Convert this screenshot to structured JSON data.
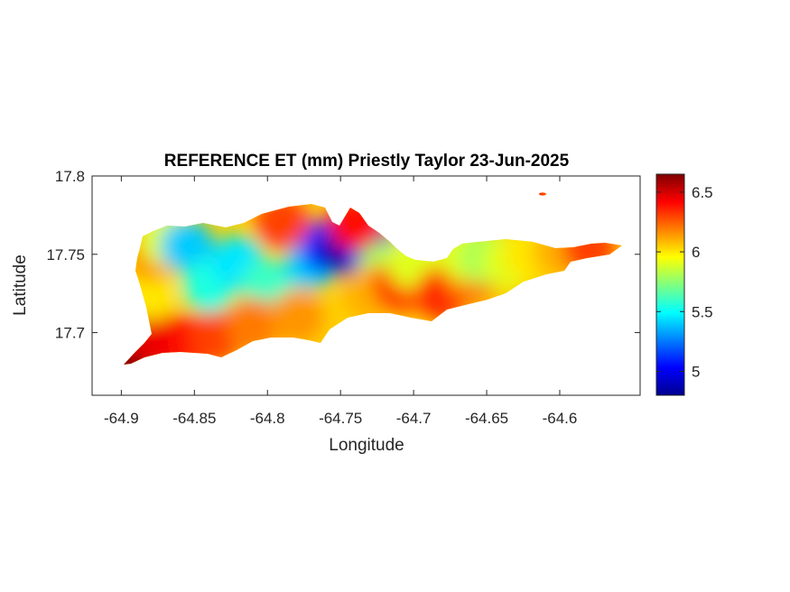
{
  "chart_data": {
    "type": "heatmap",
    "title": "REFERENCE ET (mm) Priestly Taylor 23-Jun-2025",
    "xlabel": "Longitude",
    "ylabel": "Latitude",
    "xlim": [
      -64.92,
      -64.545
    ],
    "ylim": [
      17.66,
      17.8
    ],
    "xticks": [
      -64.9,
      -64.85,
      -64.8,
      -64.75,
      -64.7,
      -64.65,
      -64.6
    ],
    "xtick_labels": [
      "-64.9",
      "-64.85",
      "-64.8",
      "-64.75",
      "-64.7",
      "-64.65",
      "-64.6"
    ],
    "yticks": [
      17.7,
      17.75,
      17.8
    ],
    "ytick_labels": [
      "17.7",
      "17.75",
      "17.8"
    ],
    "colorbar": {
      "colormap": "jet",
      "range": [
        4.8,
        6.65
      ],
      "ticks": [
        5,
        5.5,
        6,
        6.5
      ],
      "tick_labels": [
        "5",
        "5.5",
        "6",
        "6.5"
      ]
    },
    "grid": false,
    "value_field": [
      {
        "lon": -64.895,
        "lat": 17.685,
        "value": 6.65
      },
      {
        "lon": -64.885,
        "lat": 17.7,
        "value": 6.5
      },
      {
        "lon": -64.87,
        "lat": 17.695,
        "value": 6.45
      },
      {
        "lon": -64.85,
        "lat": 17.695,
        "value": 6.4
      },
      {
        "lon": -64.835,
        "lat": 17.698,
        "value": 6.3
      },
      {
        "lon": -64.88,
        "lat": 17.725,
        "value": 6.0
      },
      {
        "lon": -64.88,
        "lat": 17.75,
        "value": 6.15
      },
      {
        "lon": -64.87,
        "lat": 17.76,
        "value": 5.9
      },
      {
        "lon": -64.855,
        "lat": 17.755,
        "value": 5.4
      },
      {
        "lon": -64.84,
        "lat": 17.73,
        "value": 5.55
      },
      {
        "lon": -64.82,
        "lat": 17.745,
        "value": 5.45
      },
      {
        "lon": -64.8,
        "lat": 17.73,
        "value": 5.6
      },
      {
        "lon": -64.81,
        "lat": 17.705,
        "value": 6.2
      },
      {
        "lon": -64.78,
        "lat": 17.71,
        "value": 6.15
      },
      {
        "lon": -64.77,
        "lat": 17.745,
        "value": 5.4
      },
      {
        "lon": -64.76,
        "lat": 17.755,
        "value": 5.1
      },
      {
        "lon": -64.745,
        "lat": 17.753,
        "value": 4.85
      },
      {
        "lon": -64.73,
        "lat": 17.752,
        "value": 5.0
      },
      {
        "lon": -64.79,
        "lat": 17.77,
        "value": 6.3
      },
      {
        "lon": -64.74,
        "lat": 17.77,
        "value": 6.4
      },
      {
        "lon": -64.72,
        "lat": 17.74,
        "value": 5.8
      },
      {
        "lon": -64.73,
        "lat": 17.725,
        "value": 6.1
      },
      {
        "lon": -64.71,
        "lat": 17.73,
        "value": 6.3
      },
      {
        "lon": -64.7,
        "lat": 17.745,
        "value": 5.9
      },
      {
        "lon": -64.68,
        "lat": 17.725,
        "value": 6.35
      },
      {
        "lon": -64.66,
        "lat": 17.735,
        "value": 6.2
      },
      {
        "lon": -64.665,
        "lat": 17.75,
        "value": 5.9
      },
      {
        "lon": -64.65,
        "lat": 17.748,
        "value": 5.8
      },
      {
        "lon": -64.635,
        "lat": 17.745,
        "value": 5.9
      },
      {
        "lon": -64.62,
        "lat": 17.75,
        "value": 6.0
      },
      {
        "lon": -64.6,
        "lat": 17.752,
        "value": 6.1
      },
      {
        "lon": -64.58,
        "lat": 17.754,
        "value": 6.3
      },
      {
        "lon": -64.625,
        "lat": 17.788,
        "value": 6.4
      }
    ]
  }
}
